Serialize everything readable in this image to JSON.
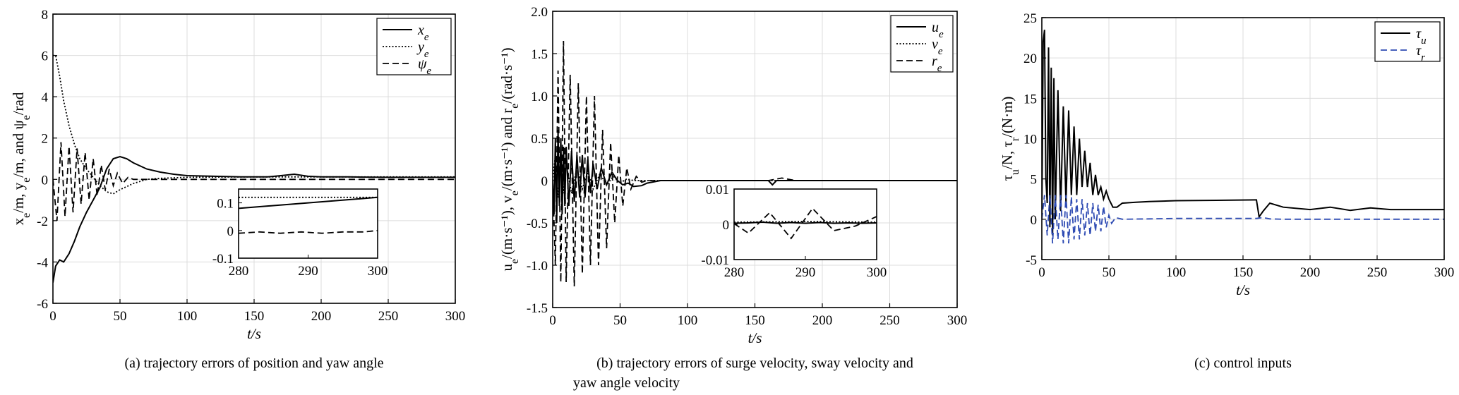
{
  "chart_data": [
    {
      "type": "line",
      "xlabel": "t/s",
      "ylabel": "x_e/m, y_e/m, and ψ_e/rad",
      "caption": "(a) trajectory errors of position and yaw angle",
      "xlim": [
        0,
        300
      ],
      "ylim": [
        -6,
        8
      ],
      "xticks": [
        0,
        50,
        100,
        150,
        200,
        250,
        300
      ],
      "yticks": [
        -6,
        -4,
        -2,
        0,
        2,
        4,
        6,
        8
      ],
      "grid": true,
      "legend_position": "top-right",
      "series": [
        {
          "name": "x_e",
          "style": "solid",
          "color": "#000000",
          "x": [
            0,
            2,
            5,
            8,
            12,
            16,
            20,
            25,
            30,
            35,
            40,
            45,
            50,
            55,
            60,
            70,
            80,
            90,
            100,
            120,
            140,
            160,
            170,
            180,
            190,
            200,
            220,
            250,
            300
          ],
          "y": [
            -5,
            -4.2,
            -3.9,
            -4.0,
            -3.6,
            -3.0,
            -2.3,
            -1.6,
            -1.0,
            -0.4,
            0.5,
            1.0,
            1.1,
            1.0,
            0.8,
            0.5,
            0.35,
            0.25,
            0.18,
            0.15,
            0.12,
            0.12,
            0.18,
            0.25,
            0.15,
            0.12,
            0.12,
            0.1,
            0.1
          ]
        },
        {
          "name": "y_e",
          "style": "dotted",
          "color": "#000000",
          "x": [
            0,
            2,
            5,
            8,
            12,
            16,
            20,
            25,
            30,
            35,
            40,
            45,
            50,
            60,
            70,
            80,
            100,
            150,
            200,
            300
          ],
          "y": [
            6,
            6.0,
            5.0,
            3.8,
            2.6,
            1.7,
            1.0,
            0.5,
            0.1,
            -0.3,
            -0.6,
            -0.7,
            -0.5,
            -0.2,
            0.0,
            0.05,
            0.1,
            0.12,
            0.12,
            0.12
          ]
        },
        {
          "name": "ψ_e",
          "style": "dashed",
          "color": "#000000",
          "x": [
            0,
            3,
            6,
            9,
            12,
            15,
            18,
            21,
            24,
            27,
            30,
            33,
            36,
            39,
            42,
            45,
            48,
            52,
            56,
            60,
            70,
            80,
            100,
            300
          ],
          "y": [
            0,
            -2.0,
            1.8,
            -1.8,
            1.6,
            -1.6,
            1.5,
            -1.2,
            1.3,
            -1.0,
            1.0,
            -0.8,
            0.7,
            -0.5,
            0.5,
            -0.3,
            0.3,
            -0.2,
            0.1,
            0.0,
            0.0,
            0.0,
            0.0,
            0.0
          ]
        }
      ],
      "inset": {
        "xlim": [
          280,
          300
        ],
        "ylim": [
          -0.1,
          0.15
        ],
        "xticks": [
          280,
          290,
          300
        ],
        "yticks": [
          -0.1,
          0,
          0.1
        ],
        "series": [
          {
            "style": "solid",
            "x": [
              280,
              300
            ],
            "y": [
              0.08,
              0.12
            ]
          },
          {
            "style": "dotted",
            "x": [
              280,
              300
            ],
            "y": [
              0.12,
              0.12
            ]
          },
          {
            "style": "dashed",
            "x": [
              280,
              283,
              286,
              289,
              292,
              295,
              298,
              300
            ],
            "y": [
              -0.01,
              -0.005,
              -0.01,
              -0.005,
              -0.01,
              -0.005,
              -0.005,
              0.0
            ]
          }
        ]
      }
    },
    {
      "type": "line",
      "xlabel": "t/s",
      "ylabel": "u_e/(m·s⁻¹), v_e/(m·s⁻¹) and r_e/(rad·s⁻¹)",
      "caption_line1": "(b) trajectory errors of surge velocity, sway velocity and",
      "caption_line2": "yaw angle velocity",
      "xlim": [
        0,
        300
      ],
      "ylim": [
        -1.5,
        2.0
      ],
      "xticks": [
        0,
        50,
        100,
        150,
        200,
        250,
        300
      ],
      "yticks": [
        -1.5,
        -1.0,
        -0.5,
        0,
        0.5,
        1.0,
        1.5,
        2.0
      ],
      "grid": true,
      "legend_position": "top-right",
      "series": [
        {
          "name": "u_e",
          "style": "solid",
          "color": "#000000",
          "x": [
            0,
            1,
            2,
            3,
            4,
            5,
            6,
            7,
            8,
            9,
            10,
            12,
            14,
            16,
            18,
            20,
            22,
            24,
            26,
            28,
            30,
            33,
            36,
            40,
            44,
            48,
            52,
            56,
            60,
            66,
            70,
            80,
            100,
            160,
            163,
            166,
            300
          ],
          "y": [
            0,
            -0.4,
            0.5,
            -0.5,
            0.6,
            -0.3,
            0.5,
            -0.4,
            0.4,
            -0.3,
            0.4,
            -0.3,
            0.35,
            -0.25,
            0.3,
            -0.2,
            0.3,
            -0.2,
            0.25,
            -0.15,
            0.2,
            -0.1,
            0.15,
            -0.05,
            0.1,
            0.0,
            -0.05,
            -0.03,
            -0.07,
            -0.06,
            -0.03,
            0.0,
            0.0,
            0.0,
            -0.05,
            0.0,
            0.0
          ]
        },
        {
          "name": "v_e",
          "style": "dotted",
          "color": "#000000",
          "x": [
            0,
            2,
            4,
            6,
            8,
            10,
            14,
            18,
            22,
            26,
            30,
            35,
            40,
            45,
            50,
            55,
            60,
            80,
            100,
            300
          ],
          "y": [
            0,
            0.3,
            -0.2,
            0.25,
            -0.15,
            0.2,
            -0.15,
            0.15,
            -0.1,
            0.1,
            -0.1,
            0.08,
            -0.05,
            0.05,
            -0.03,
            0.02,
            0.0,
            0.0,
            0.0,
            0.0
          ]
        },
        {
          "name": "r_e",
          "style": "dashed",
          "color": "#000000",
          "x": [
            0,
            2,
            4,
            6,
            8,
            10,
            13,
            16,
            19,
            22,
            25,
            28,
            31,
            34,
            37,
            40,
            43,
            46,
            49,
            52,
            55,
            58,
            62,
            66,
            70,
            80,
            100,
            160,
            170,
            180,
            300
          ],
          "y": [
            0,
            -1.0,
            1.3,
            -1.2,
            1.65,
            -1.2,
            1.25,
            -1.25,
            1.15,
            -1.1,
            1.0,
            -1.0,
            1.0,
            -1.0,
            0.6,
            -0.8,
            0.45,
            -0.5,
            0.3,
            -0.3,
            0.15,
            -0.1,
            0.05,
            -0.02,
            0.0,
            0.0,
            0.0,
            0.0,
            0.03,
            0.0,
            0.0
          ]
        }
      ],
      "inset": {
        "xlim": [
          280,
          300
        ],
        "ylim": [
          -0.01,
          0.01
        ],
        "xticks": [
          280,
          290,
          300
        ],
        "yticks": [
          -0.01,
          0,
          0.01
        ],
        "series": [
          {
            "style": "solid",
            "x": [
              280,
              282,
              284,
              286,
              288,
              290,
              292,
              294,
              296,
              298,
              300
            ],
            "y": [
              0.0003,
              0.0004,
              0.0006,
              0.0003,
              0.0005,
              0.0003,
              0.0005,
              0.0003,
              0.0004,
              0.0003,
              0.0004
            ]
          },
          {
            "style": "dotted",
            "x": [
              280,
              290,
              300
            ],
            "y": [
              0.0006,
              0.0008,
              0.0006
            ]
          },
          {
            "style": "dashed",
            "x": [
              280,
              282,
              285,
              288,
              291,
              294,
              297,
              300
            ],
            "y": [
              0.0002,
              -0.0025,
              0.0033,
              -0.004,
              0.0045,
              -0.0018,
              -0.0005,
              0.0022
            ]
          }
        ]
      }
    },
    {
      "type": "line",
      "xlabel": "t/s",
      "ylabel": "τ_u/N, τ_r/(N·m)",
      "caption": "(c) control inputs",
      "xlim": [
        0,
        300
      ],
      "ylim": [
        -5,
        25
      ],
      "xticks": [
        0,
        50,
        100,
        150,
        200,
        250,
        300
      ],
      "yticks": [
        -5,
        0,
        5,
        10,
        15,
        20,
        25
      ],
      "grid": true,
      "legend_position": "top-right",
      "series": [
        {
          "name": "τ_u",
          "style": "solid",
          "color": "#000000",
          "x": [
            0,
            1,
            2,
            3,
            4,
            5,
            6,
            7,
            8,
            9,
            10,
            12,
            14,
            16,
            18,
            20,
            22,
            24,
            26,
            28,
            30,
            32,
            34,
            36,
            38,
            40,
            42,
            44,
            46,
            48,
            50,
            53,
            56,
            60,
            70,
            80,
            100,
            130,
            160,
            162,
            165,
            170,
            180,
            200,
            215,
            230,
            245,
            260,
            300
          ],
          "y": [
            0,
            22,
            23.5,
            5,
            2,
            21.3,
            -1,
            18.8,
            -2,
            17.5,
            0,
            16,
            1,
            14,
            2,
            13.5,
            3,
            11.5,
            3,
            10,
            4,
            8.5,
            4,
            7,
            3,
            5.5,
            3,
            4,
            2.5,
            3.5,
            2.5,
            1.5,
            1.5,
            2.0,
            2.1,
            2.2,
            2.3,
            2.35,
            2.4,
            0.3,
            1.0,
            2.0,
            1.5,
            1.2,
            1.5,
            1.1,
            1.4,
            1.2,
            1.2
          ]
        },
        {
          "name": "τ_r",
          "style": "dashed",
          "color": "#2e4bb3",
          "x": [
            0,
            2,
            4,
            6,
            8,
            10,
            12,
            14,
            16,
            18,
            20,
            22,
            24,
            26,
            28,
            30,
            32,
            34,
            36,
            38,
            40,
            42,
            44,
            46,
            48,
            50,
            52,
            55,
            60,
            80,
            100,
            160,
            165,
            170,
            180,
            200,
            300
          ],
          "y": [
            0,
            3,
            -2,
            3,
            -3,
            3,
            -2.5,
            3,
            -3,
            3,
            -3,
            2.8,
            -2.5,
            2.5,
            -2.5,
            2.5,
            -2.0,
            2.0,
            -2.0,
            2.0,
            -1.5,
            1.8,
            -1.5,
            1.6,
            -1.0,
            0.5,
            -0.5,
            0.2,
            0.0,
            0.05,
            0.1,
            0.1,
            0.2,
            0.05,
            0.0,
            0.0,
            0.0
          ]
        }
      ]
    }
  ]
}
